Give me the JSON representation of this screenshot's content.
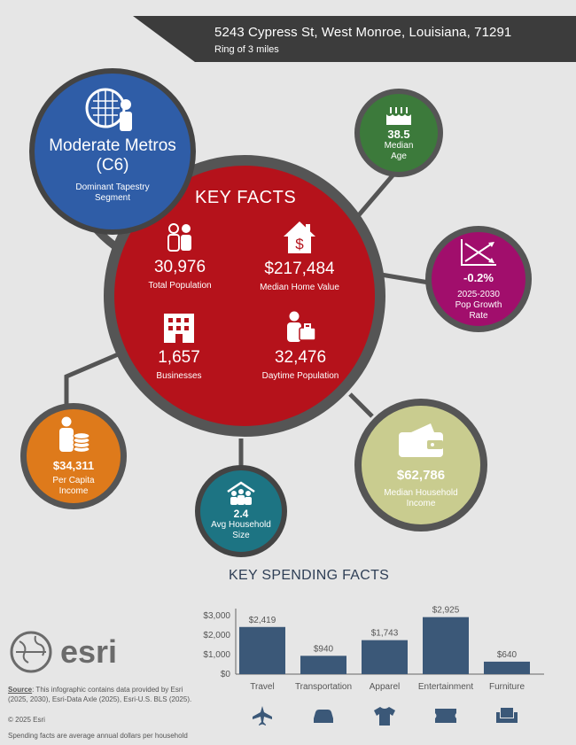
{
  "header": {
    "address": "5243 Cypress St, West Monroe, Louisiana, 71291",
    "ring": "Ring of 3 miles"
  },
  "tapestry": {
    "name_line1": "Moderate Metros",
    "name_line2": "(C6)",
    "label_line1": "Dominant Tapestry",
    "label_line2": "Segment"
  },
  "key_facts": {
    "title": "KEY FACTS",
    "total_population": {
      "value": "30,976",
      "label": "Total Population"
    },
    "median_home_value": {
      "value": "$217,484",
      "label": "Median Home Value"
    },
    "businesses": {
      "value": "1,657",
      "label": "Businesses"
    },
    "daytime_population": {
      "value": "32,476",
      "label": "Daytime Population"
    }
  },
  "median_age": {
    "value": "38.5",
    "label_line1": "Median",
    "label_line2": "Age"
  },
  "pop_growth": {
    "value": "-0.2%",
    "label_line1": "2025-2030",
    "label_line2": "Pop Growth",
    "label_line3": "Rate"
  },
  "median_household_income": {
    "value": "$62,786",
    "label_line1": "Median Household",
    "label_line2": "Income"
  },
  "avg_household_size": {
    "value": "2.4",
    "label_line1": "Avg Household",
    "label_line2": "Size"
  },
  "per_capita_income": {
    "value": "$34,311",
    "label_line1": "Per Capita",
    "label_line2": "Income"
  },
  "spending": {
    "title": "KEY SPENDING FACTS"
  },
  "chart_data": {
    "type": "bar",
    "categories": [
      "Travel",
      "Transportation",
      "Apparel",
      "Entertainment",
      "Furniture"
    ],
    "values": [
      2419,
      940,
      1743,
      2925,
      640
    ],
    "data_labels": [
      "$2,419",
      "$940",
      "$1,743",
      "$2,925",
      "$640"
    ],
    "y_ticks": [
      "$0",
      "$1,000",
      "$2,000",
      "$3,000"
    ],
    "ylim": [
      0,
      3000
    ],
    "bar_color": "#3b5878",
    "icons": [
      "airplane-icon",
      "car-icon",
      "tshirt-icon",
      "ticket-icon",
      "armchair-icon"
    ]
  },
  "brand": {
    "name": "esri"
  },
  "footer": {
    "source_key": "Source",
    "source_text": ": This infographic contains data provided by Esri",
    "source_text2": "(2025, 2030), Esri-Data Axle (2025), Esri-U.S. BLS (2025).",
    "copyright": "© 2025 Esri",
    "note": "Spending facts are average annual dollars per household"
  },
  "colors": {
    "tapestry": "#2f5da7",
    "key_facts": "#b5121b",
    "age": "#3c7a3b",
    "growth": "#a10e6c",
    "household_income": "#c9cc8f",
    "household_size": "#1d7483",
    "per_capita": "#de7a1b"
  }
}
